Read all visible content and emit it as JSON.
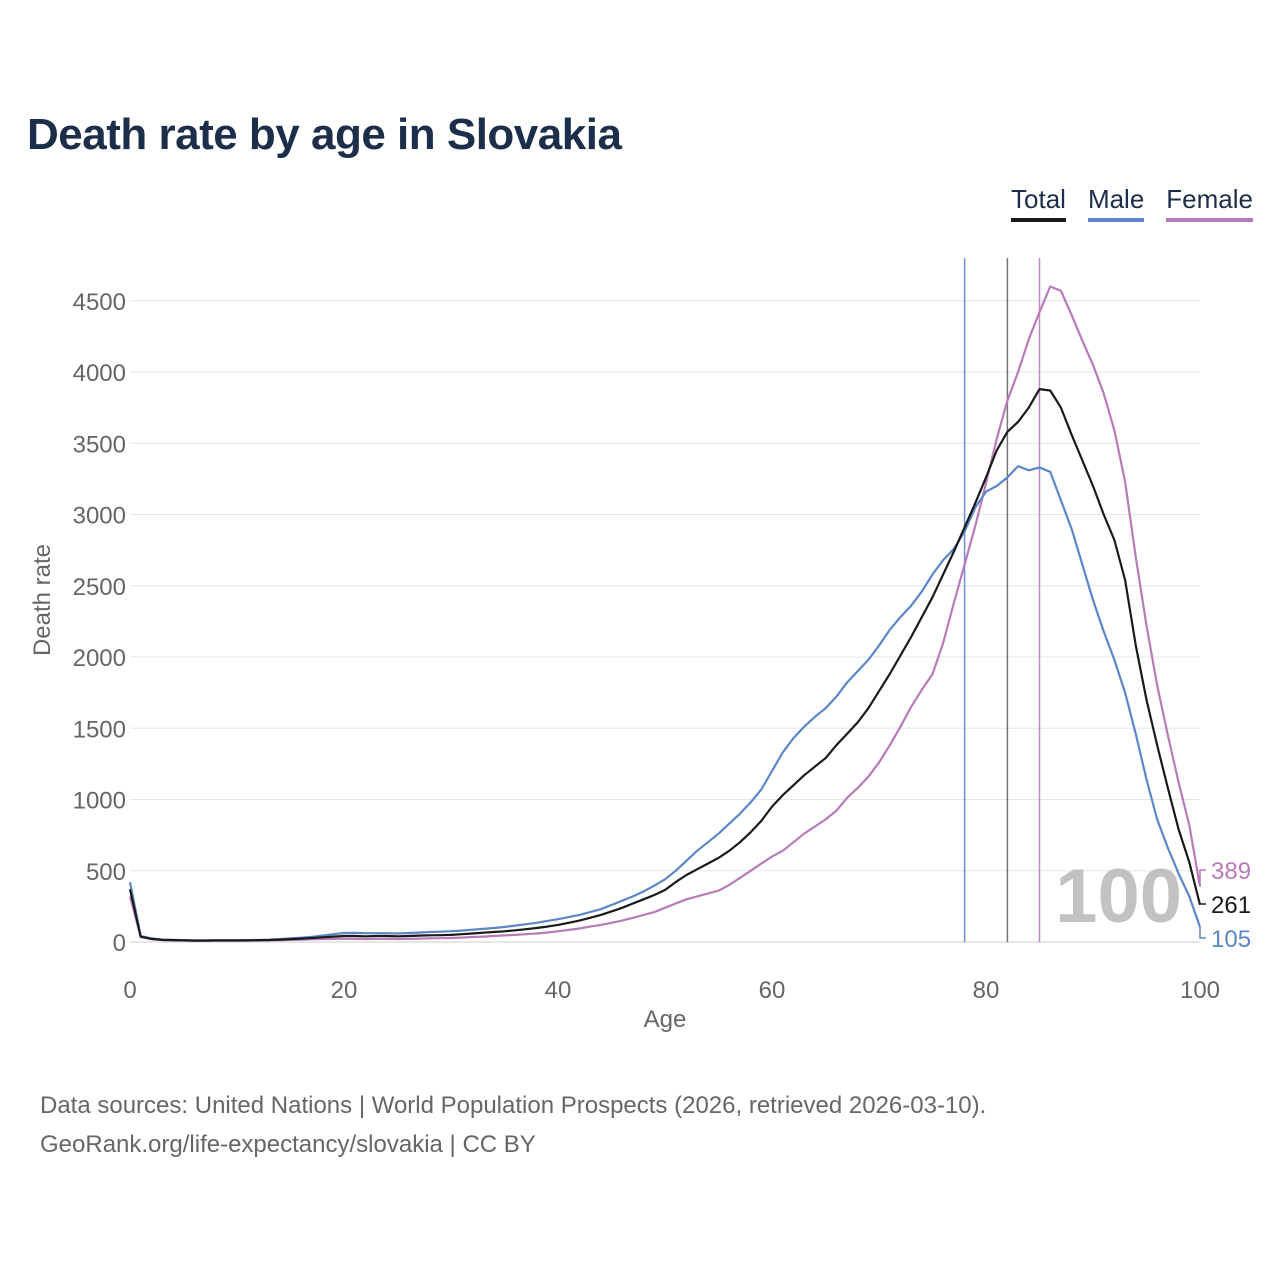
{
  "title": "Death rate by age in Slovakia",
  "legend": [
    {
      "label": "Total",
      "color": "#1a1a1a"
    },
    {
      "label": "Male",
      "color": "#5b86c8"
    },
    {
      "label": "Female",
      "color": "#b87bba"
    }
  ],
  "footer": {
    "line1": "Data sources: United Nations | World Population Prospects (2026, retrieved 2026-03-10).",
    "line2": "GeoRank.org/life-expectancy/slovakia | CC BY"
  },
  "chart_data": {
    "type": "line",
    "title": "Death rate by age in Slovakia",
    "xlabel": "Age",
    "ylabel": "Death rate",
    "xlim": [
      0,
      100
    ],
    "ylim": [
      0,
      4800
    ],
    "xticks": [
      0,
      20,
      40,
      60,
      80,
      100
    ],
    "yticks": [
      0,
      500,
      1000,
      1500,
      2000,
      2500,
      3000,
      3500,
      4000,
      4500
    ],
    "grid": true,
    "year_watermark": "100",
    "x": [
      0,
      1,
      2,
      3,
      4,
      5,
      6,
      7,
      8,
      9,
      10,
      11,
      12,
      13,
      14,
      15,
      16,
      17,
      18,
      19,
      20,
      21,
      22,
      23,
      24,
      25,
      26,
      27,
      28,
      29,
      30,
      31,
      32,
      33,
      34,
      35,
      36,
      37,
      38,
      39,
      40,
      41,
      42,
      43,
      44,
      45,
      46,
      47,
      48,
      49,
      50,
      51,
      52,
      53,
      54,
      55,
      56,
      57,
      58,
      59,
      60,
      61,
      62,
      63,
      64,
      65,
      66,
      67,
      68,
      69,
      70,
      71,
      72,
      73,
      74,
      75,
      76,
      77,
      78,
      79,
      80,
      81,
      82,
      83,
      84,
      85,
      86,
      87,
      88,
      89,
      90,
      91,
      92,
      93,
      94,
      95,
      96,
      97,
      98,
      99,
      100
    ],
    "series": [
      {
        "name": "Total",
        "color": "#1a1a1a",
        "end_label": "261",
        "vline": 82,
        "values": [
          370,
          38,
          22,
          15,
          13,
          12,
          10,
          10,
          11,
          11,
          11,
          12,
          13,
          14,
          17,
          20,
          24,
          28,
          33,
          38,
          42,
          42,
          40,
          42,
          42,
          40,
          42,
          45,
          47,
          48,
          50,
          55,
          60,
          65,
          70,
          75,
          82,
          90,
          98,
          108,
          120,
          135,
          150,
          170,
          190,
          215,
          240,
          270,
          300,
          330,
          365,
          420,
          470,
          510,
          550,
          590,
          640,
          700,
          770,
          850,
          950,
          1030,
          1100,
          1170,
          1230,
          1290,
          1380,
          1460,
          1540,
          1640,
          1760,
          1880,
          2010,
          2140,
          2280,
          2420,
          2580,
          2740,
          2910,
          3080,
          3260,
          3450,
          3580,
          3650,
          3750,
          3880,
          3870,
          3750,
          3560,
          3380,
          3200,
          3000,
          2820,
          2540,
          2080,
          1700,
          1380,
          1080,
          790,
          560,
          261
        ]
      },
      {
        "name": "Male",
        "color": "#5b86c8",
        "end_label": "105",
        "vline": 78,
        "values": [
          420,
          42,
          25,
          17,
          15,
          13,
          11,
          11,
          12,
          12,
          12,
          13,
          14,
          16,
          20,
          25,
          30,
          36,
          45,
          55,
          63,
          64,
          62,
          62,
          62,
          60,
          63,
          66,
          70,
          72,
          76,
          80,
          86,
          92,
          98,
          105,
          115,
          125,
          135,
          148,
          160,
          175,
          190,
          210,
          230,
          260,
          290,
          320,
          355,
          395,
          440,
          500,
          570,
          640,
          700,
          760,
          830,
          900,
          980,
          1070,
          1200,
          1330,
          1430,
          1510,
          1580,
          1640,
          1720,
          1820,
          1900,
          1980,
          2080,
          2190,
          2280,
          2360,
          2460,
          2580,
          2680,
          2760,
          2880,
          3050,
          3160,
          3200,
          3260,
          3340,
          3310,
          3330,
          3300,
          3100,
          2900,
          2650,
          2400,
          2180,
          1980,
          1750,
          1460,
          1140,
          860,
          660,
          480,
          320,
          105
        ]
      },
      {
        "name": "Female",
        "color": "#b87bba",
        "end_label": "389",
        "vline": 85,
        "values": [
          320,
          35,
          20,
          14,
          12,
          11,
          9,
          9,
          9,
          10,
          10,
          10,
          11,
          12,
          13,
          15,
          17,
          19,
          21,
          22,
          23,
          22,
          21,
          22,
          22,
          21,
          22,
          24,
          26,
          27,
          28,
          31,
          35,
          38,
          42,
          46,
          50,
          55,
          60,
          67,
          75,
          85,
          95,
          108,
          120,
          135,
          150,
          170,
          190,
          210,
          240,
          270,
          300,
          320,
          340,
          360,
          400,
          450,
          500,
          550,
          600,
          640,
          700,
          760,
          810,
          860,
          920,
          1010,
          1080,
          1160,
          1260,
          1380,
          1510,
          1650,
          1770,
          1880,
          2100,
          2380,
          2650,
          2920,
          3220,
          3530,
          3800,
          4000,
          4230,
          4420,
          4600,
          4570,
          4400,
          4220,
          4050,
          3850,
          3590,
          3230,
          2700,
          2220,
          1800,
          1450,
          1120,
          820,
          389
        ]
      }
    ]
  }
}
